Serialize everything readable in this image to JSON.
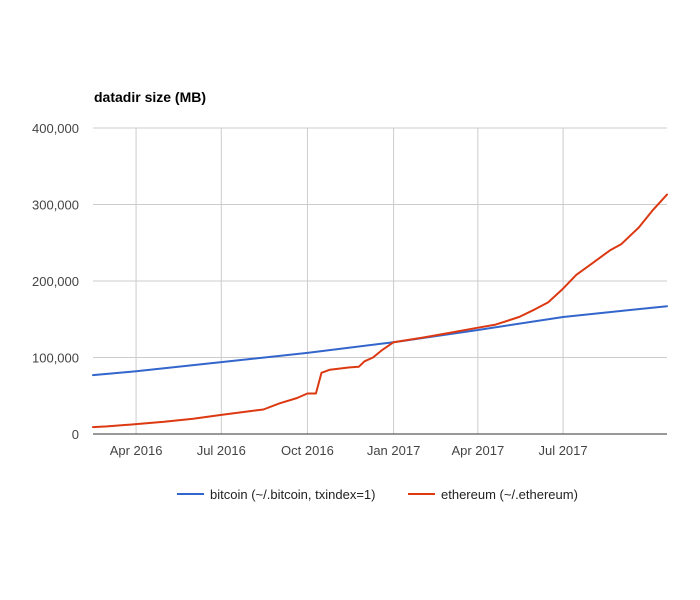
{
  "chart_data": {
    "type": "line",
    "title": "datadir size (MB)",
    "xlabel": "",
    "ylabel": "",
    "x_range": [
      "2016-02-15",
      "2017-10-20"
    ],
    "ylim": [
      0,
      400000
    ],
    "y_ticks": [
      0,
      100000,
      200000,
      300000,
      400000
    ],
    "y_tick_labels": [
      "0",
      "100,000",
      "200,000",
      "300,000",
      "400,000"
    ],
    "x_ticks": [
      "2016-04-01",
      "2016-07-01",
      "2016-10-01",
      "2017-01-01",
      "2017-04-01",
      "2017-07-01"
    ],
    "x_tick_labels": [
      "Apr 2016",
      "Jul 2016",
      "Oct 2016",
      "Jan 2017",
      "Apr 2017",
      "Jul 2017"
    ],
    "grid": true,
    "legend_position": "bottom",
    "series": [
      {
        "name": "bitcoin (~/.bitcoin, txindex=1)",
        "color": "#3366cc",
        "points": [
          [
            "2016-02-15",
            77000
          ],
          [
            "2016-04-01",
            82000
          ],
          [
            "2016-07-01",
            94000
          ],
          [
            "2016-10-01",
            106000
          ],
          [
            "2017-01-01",
            120000
          ],
          [
            "2017-04-01",
            136000
          ],
          [
            "2017-07-01",
            153000
          ],
          [
            "2017-10-20",
            167000
          ]
        ]
      },
      {
        "name": "ethereum (~/.ethereum)",
        "color": "#dc3912",
        "points": [
          [
            "2016-02-15",
            9000
          ],
          [
            "2016-03-01",
            10000
          ],
          [
            "2016-04-01",
            13000
          ],
          [
            "2016-05-01",
            16000
          ],
          [
            "2016-06-01",
            20000
          ],
          [
            "2016-07-01",
            25000
          ],
          [
            "2016-08-01",
            30000
          ],
          [
            "2016-08-15",
            32000
          ],
          [
            "2016-09-01",
            40000
          ],
          [
            "2016-09-20",
            47000
          ],
          [
            "2016-10-01",
            53000
          ],
          [
            "2016-10-10",
            53000
          ],
          [
            "2016-10-16",
            80000
          ],
          [
            "2016-10-25",
            84000
          ],
          [
            "2016-11-15",
            87000
          ],
          [
            "2016-11-25",
            88000
          ],
          [
            "2016-12-01",
            95000
          ],
          [
            "2016-12-10",
            100000
          ],
          [
            "2016-12-20",
            110000
          ],
          [
            "2017-01-01",
            120000
          ],
          [
            "2017-02-01",
            126000
          ],
          [
            "2017-03-01",
            132000
          ],
          [
            "2017-04-01",
            139000
          ],
          [
            "2017-04-20",
            143000
          ],
          [
            "2017-05-15",
            153000
          ],
          [
            "2017-06-01",
            163000
          ],
          [
            "2017-06-15",
            172000
          ],
          [
            "2017-07-01",
            190000
          ],
          [
            "2017-07-15",
            208000
          ],
          [
            "2017-08-01",
            223000
          ],
          [
            "2017-08-20",
            240000
          ],
          [
            "2017-09-01",
            248000
          ],
          [
            "2017-09-20",
            270000
          ],
          [
            "2017-10-05",
            293000
          ],
          [
            "2017-10-20",
            313000
          ]
        ]
      }
    ]
  }
}
